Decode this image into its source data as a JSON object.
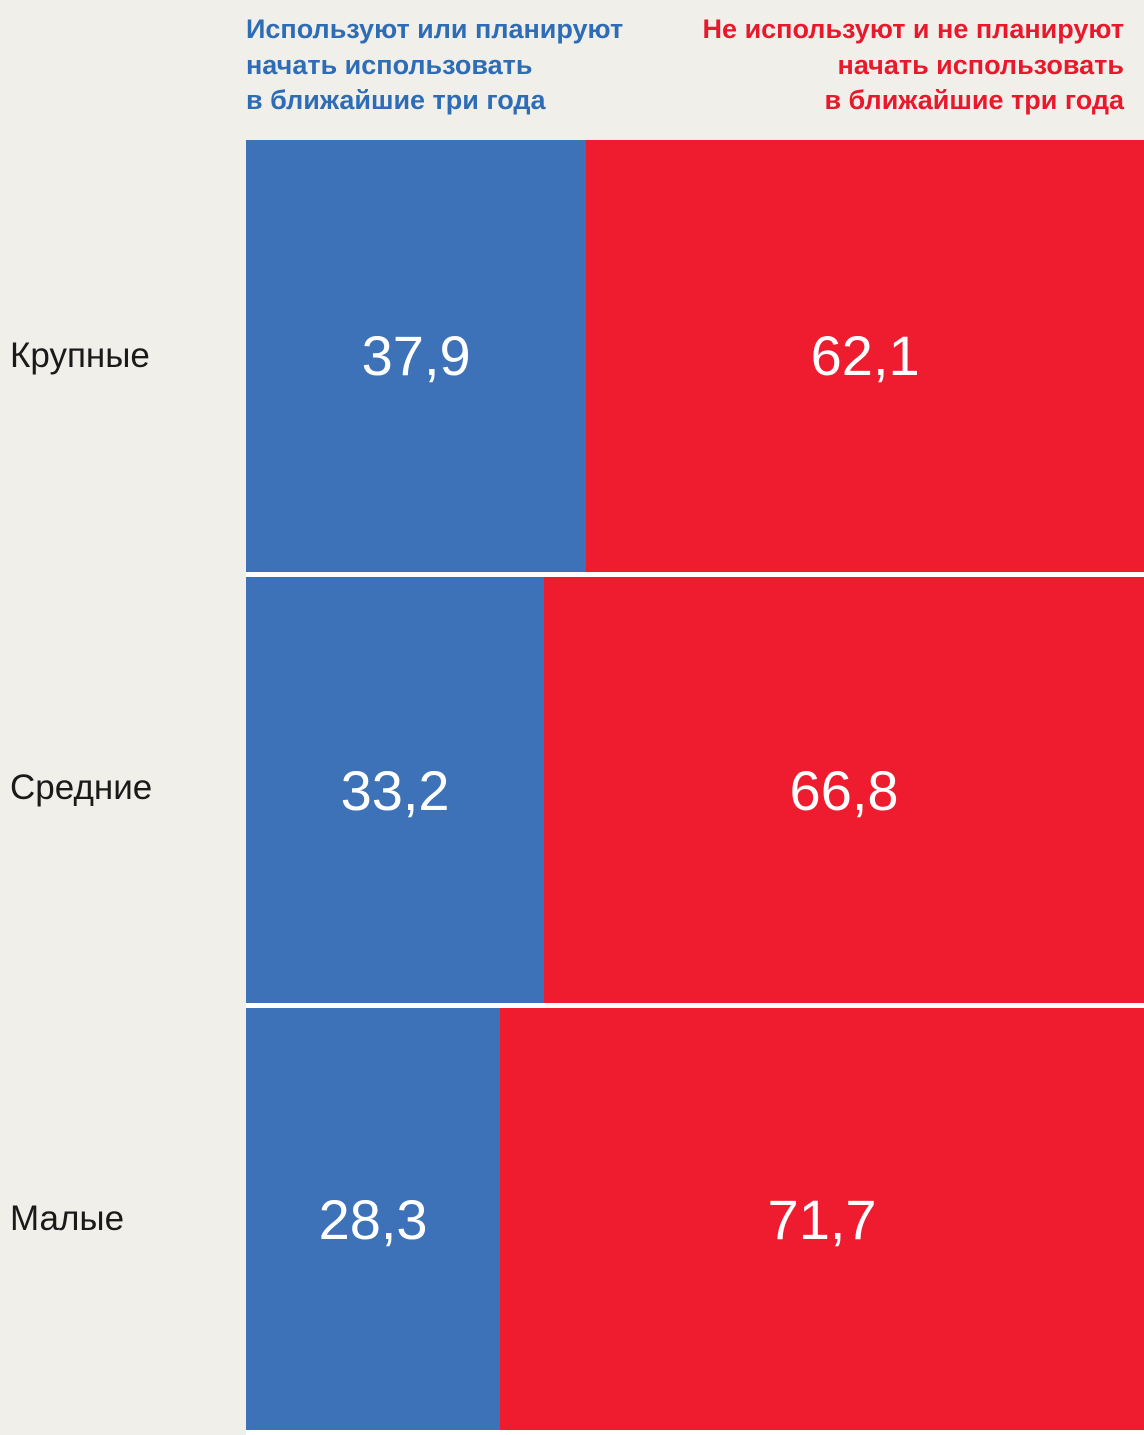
{
  "colors": {
    "background": "#f0efe9",
    "bar_blue": "#3d72b9",
    "bar_red": "#ee1c2e",
    "legend_blue": "#2e6db6",
    "legend_red": "#e8192c",
    "category_text": "#1a1a1a",
    "value_text": "#ffffff",
    "separator": "#ffffff"
  },
  "chart_data": {
    "type": "bar",
    "variant": "horizontal-stacked-100",
    "categories": [
      "Крупные",
      "Средние",
      "Малые"
    ],
    "series": [
      {
        "name": "Используют или планируют начать использовать в ближайшие три года",
        "color": "#3d72b9",
        "values": [
          37.9,
          33.2,
          28.3
        ]
      },
      {
        "name": "Не используют и не планируют начать использовать в ближайшие три года",
        "color": "#ee1c2e",
        "values": [
          62.1,
          66.8,
          71.7
        ]
      }
    ],
    "value_labels": [
      [
        "37,9",
        "62,1"
      ],
      [
        "33,2",
        "66,8"
      ],
      [
        "28,3",
        "71,7"
      ]
    ],
    "xlim": [
      0,
      100
    ],
    "legend": {
      "position": "top",
      "left": {
        "text": "Используют или планируют\nначать использовать\nв ближайшие три года"
      },
      "right": {
        "text": "Не используют и не планируют\nначать использовать\nв ближайшие три года"
      }
    }
  }
}
